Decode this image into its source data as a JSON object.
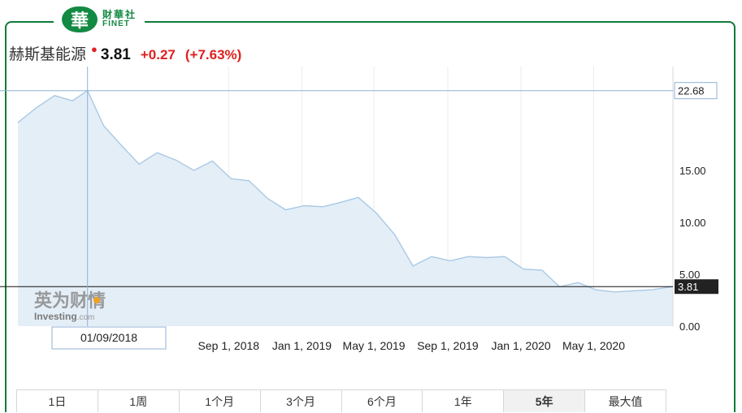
{
  "brand": {
    "mark": "華",
    "name_cn": "財華社",
    "name_en": "FINET"
  },
  "stock": {
    "name": "赫斯基能源",
    "price": "3.81",
    "change": "+0.27",
    "change_pct": "(+7.63%)"
  },
  "colors": {
    "green": "#138a43",
    "up": "#e02020",
    "area_fill": "#e4eef7",
    "line": "#a9c9e4",
    "label_bg": "#222222"
  },
  "watermark": {
    "cn": "英为财情",
    "en": "Investing",
    "en_suffix": ".com"
  },
  "crosshair": {
    "date_label": "01/09/2018",
    "value_label": "22.68"
  },
  "last_value_label": "3.81",
  "tabs": [
    {
      "label": "1日"
    },
    {
      "label": "1周"
    },
    {
      "label": "1个月"
    },
    {
      "label": "3个月"
    },
    {
      "label": "6个月"
    },
    {
      "label": "1年"
    },
    {
      "label": "5年",
      "active": true
    },
    {
      "label": "最大值"
    }
  ],
  "chart_data": {
    "type": "area",
    "title": "",
    "xlabel": "",
    "ylabel": "",
    "ylim": [
      0,
      25
    ],
    "y_ticks": [
      {
        "value": 0,
        "label": "0.00"
      },
      {
        "value": 5,
        "label": "5.00"
      },
      {
        "value": 10,
        "label": "10.00"
      },
      {
        "value": 15,
        "label": "15.00"
      }
    ],
    "x_ticks": [
      {
        "date": "2018-09-01",
        "label": "Sep 1, 2018"
      },
      {
        "date": "2019-01-01",
        "label": "Jan 1, 2019"
      },
      {
        "date": "2019-05-01",
        "label": "May 1, 2019"
      },
      {
        "date": "2019-09-01",
        "label": "Sep 1, 2019"
      },
      {
        "date": "2020-01-01",
        "label": "Jan 1, 2020"
      },
      {
        "date": "2020-05-01",
        "label": "May 1, 2020"
      }
    ],
    "x_range": [
      "2017-09-15",
      "2020-09-10"
    ],
    "grid": "vertical",
    "series": [
      {
        "points": [
          {
            "x": "2017-09-15",
            "y": 19.6
          },
          {
            "x": "2017-10-15",
            "y": 21.0
          },
          {
            "x": "2017-11-15",
            "y": 22.2
          },
          {
            "x": "2017-12-15",
            "y": 21.7
          },
          {
            "x": "2018-01-09",
            "y": 22.68
          },
          {
            "x": "2018-02-05",
            "y": 19.3
          },
          {
            "x": "2018-03-05",
            "y": 17.5
          },
          {
            "x": "2018-04-05",
            "y": 15.6
          },
          {
            "x": "2018-05-05",
            "y": 16.7
          },
          {
            "x": "2018-06-05",
            "y": 16.0
          },
          {
            "x": "2018-07-05",
            "y": 15.0
          },
          {
            "x": "2018-08-05",
            "y": 15.9
          },
          {
            "x": "2018-09-05",
            "y": 14.2
          },
          {
            "x": "2018-10-05",
            "y": 14.0
          },
          {
            "x": "2018-11-05",
            "y": 12.3
          },
          {
            "x": "2018-12-05",
            "y": 11.2
          },
          {
            "x": "2019-01-05",
            "y": 11.6
          },
          {
            "x": "2019-02-05",
            "y": 11.5
          },
          {
            "x": "2019-03-05",
            "y": 11.9
          },
          {
            "x": "2019-04-05",
            "y": 12.4
          },
          {
            "x": "2019-05-05",
            "y": 10.9
          },
          {
            "x": "2019-06-05",
            "y": 8.8
          },
          {
            "x": "2019-07-05",
            "y": 5.8
          },
          {
            "x": "2019-08-05",
            "y": 6.7
          },
          {
            "x": "2019-09-05",
            "y": 6.3
          },
          {
            "x": "2019-10-05",
            "y": 6.7
          },
          {
            "x": "2019-11-05",
            "y": 6.6
          },
          {
            "x": "2019-12-05",
            "y": 6.7
          },
          {
            "x": "2020-01-05",
            "y": 5.5
          },
          {
            "x": "2020-02-05",
            "y": 5.4
          },
          {
            "x": "2020-03-05",
            "y": 3.8
          },
          {
            "x": "2020-04-05",
            "y": 4.2
          },
          {
            "x": "2020-05-05",
            "y": 3.5
          },
          {
            "x": "2020-06-05",
            "y": 3.3
          },
          {
            "x": "2020-07-05",
            "y": 3.4
          },
          {
            "x": "2020-08-05",
            "y": 3.5
          },
          {
            "x": "2020-09-10",
            "y": 3.81
          }
        ]
      }
    ],
    "highlight": {
      "date": "2018-01-09",
      "value": 22.68
    },
    "last": {
      "value": 3.81
    }
  }
}
